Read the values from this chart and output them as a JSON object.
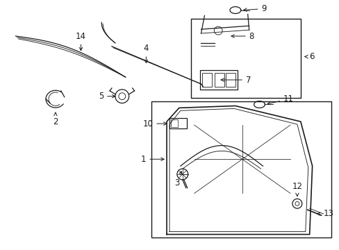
{
  "bg_color": "#ffffff",
  "line_color": "#1a1a1a",
  "fig_width": 4.89,
  "fig_height": 3.6,
  "dpi": 100,
  "fs": 8.5,
  "lw": 0.9
}
